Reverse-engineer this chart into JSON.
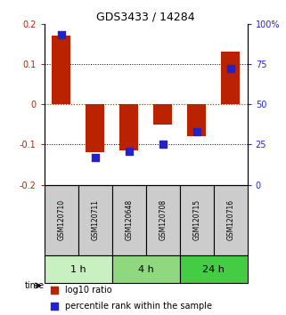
{
  "title": "GDS3433 / 14284",
  "samples": [
    "GSM120710",
    "GSM120711",
    "GSM120648",
    "GSM120708",
    "GSM120715",
    "GSM120716"
  ],
  "log10_ratio": [
    0.17,
    -0.12,
    -0.115,
    -0.05,
    -0.08,
    0.13
  ],
  "percentile_rank": [
    93,
    17,
    21,
    25,
    33,
    72
  ],
  "groups": [
    {
      "label": "1 h",
      "indices": [
        0,
        1
      ],
      "color": "#c8f0c0"
    },
    {
      "label": "4 h",
      "indices": [
        2,
        3
      ],
      "color": "#90d880"
    },
    {
      "label": "24 h",
      "indices": [
        4,
        5
      ],
      "color": "#44cc44"
    }
  ],
  "red_color": "#bb2200",
  "blue_color": "#2222cc",
  "ylim_left": [
    -0.2,
    0.2
  ],
  "ylim_right": [
    0,
    100
  ],
  "yticks_left": [
    -0.2,
    -0.1,
    0.0,
    0.1,
    0.2
  ],
  "yticks_right": [
    0,
    25,
    50,
    75,
    100
  ],
  "ytick_labels_right": [
    "0",
    "25",
    "50",
    "75",
    "100%"
  ],
  "bar_width": 0.55,
  "dot_size": 30,
  "background_color": "#ffffff",
  "sample_box_color": "#cccccc",
  "legend_items": [
    "log10 ratio",
    "percentile rank within the sample"
  ]
}
